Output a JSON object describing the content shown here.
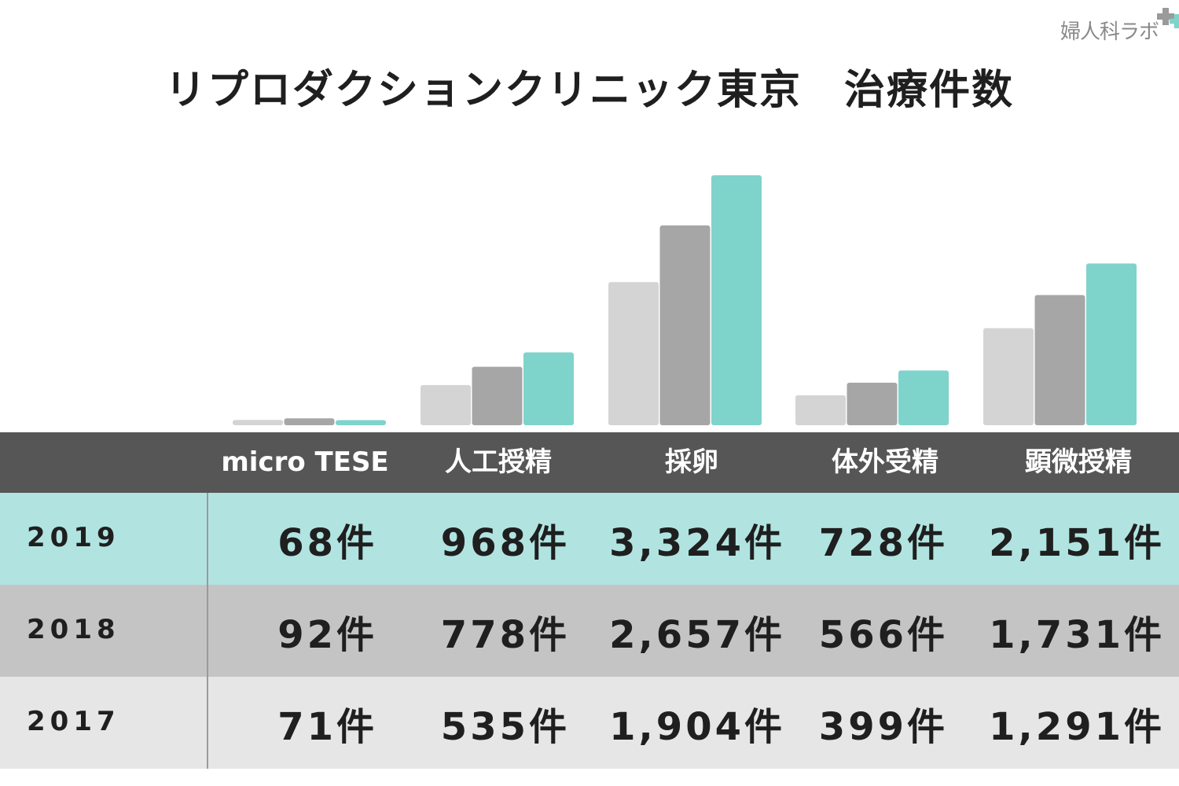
{
  "logo": {
    "text": "婦人科ラボ",
    "plus_colors": [
      "#9a9a9a",
      "#7ed3cb"
    ]
  },
  "title": "リプロダクションクリニック東京　治療件数",
  "colors": {
    "2017": "#d4d4d4",
    "2018": "#a6a6a6",
    "2019": "#7ed3cb",
    "header_bg": "#565656",
    "row_2019_bg": "#b1e4e1",
    "row_2018_bg": "#c4c4c4",
    "row_2017_bg": "#e6e6e6"
  },
  "chart_data": {
    "type": "bar",
    "categories": [
      "micro TESE",
      "人工授精",
      "採卵",
      "体外受精",
      "顕微授精"
    ],
    "series": [
      {
        "name": "2017",
        "values": [
          71,
          535,
          1904,
          399,
          1291
        ]
      },
      {
        "name": "2018",
        "values": [
          92,
          778,
          2657,
          566,
          1731
        ]
      },
      {
        "name": "2019",
        "values": [
          68,
          968,
          3324,
          728,
          2151
        ]
      }
    ],
    "ylim": [
      0,
      3324
    ],
    "grid": false,
    "legend": "table rows",
    "title": "リプロダクションクリニック東京　治療件数"
  },
  "table": {
    "headers": [
      "micro TESE",
      "人工授精",
      "採卵",
      "体外受精",
      "顕微授精"
    ],
    "rows": [
      {
        "year": "2019",
        "values": [
          "68件",
          "968件",
          "3,324件",
          "728件",
          "2,151件"
        ]
      },
      {
        "year": "2018",
        "values": [
          "92件",
          "778件",
          "2,657件",
          "566件",
          "1,731件"
        ]
      },
      {
        "year": "2017",
        "values": [
          "71件",
          "535件",
          "1,904件",
          "399件",
          "1,291件"
        ]
      }
    ]
  }
}
